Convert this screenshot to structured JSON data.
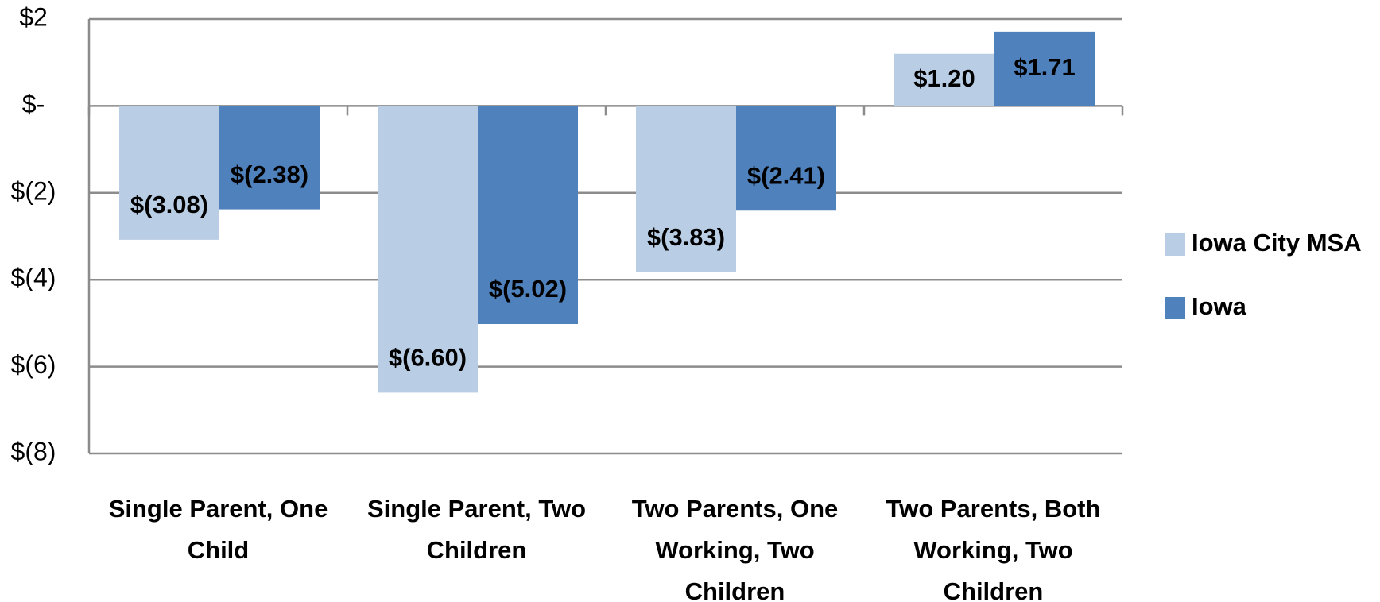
{
  "chart_data": {
    "type": "bar",
    "categories": [
      "Single Parent, One Child",
      "Single Parent, Two Children",
      "Two Parents, One Working, Two Children",
      "Two Parents, Both Working, Two Children"
    ],
    "series": [
      {
        "name": "Iowa City MSA",
        "color": "#b9cde5",
        "values": [
          -3.08,
          -6.6,
          -3.83,
          1.2
        ],
        "value_labels": [
          "$(3.08)",
          "$(6.60)",
          "$(3.83)",
          "$1.20"
        ]
      },
      {
        "name": "Iowa",
        "color": "#4f81bd",
        "values": [
          -2.38,
          -5.02,
          -2.41,
          1.71
        ],
        "value_labels": [
          "$(2.38)",
          "$(5.02)",
          "$(2.41)",
          "$1.71"
        ]
      }
    ],
    "ylim": [
      -8,
      2
    ],
    "yticks": [
      {
        "value": -8,
        "label": "$(8)"
      },
      {
        "value": -6,
        "label": "$(6)"
      },
      {
        "value": -4,
        "label": "$(4)"
      },
      {
        "value": -2,
        "label": "$(2)"
      },
      {
        "value": 0,
        "label": "$-"
      },
      {
        "value": 2,
        "label": "$2"
      }
    ],
    "grid": true,
    "legend": "right"
  }
}
